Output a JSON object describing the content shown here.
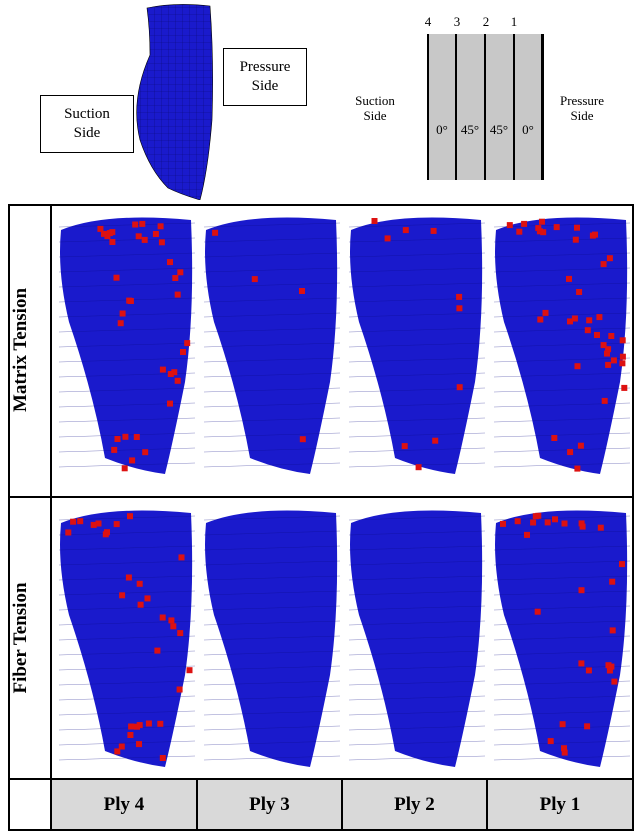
{
  "top_diagram": {
    "suction_label": "Suction\nSide",
    "pressure_label": "Pressure\nSide"
  },
  "layup": {
    "suction_label": "Suction\nSide",
    "pressure_label": "Pressure\nSide",
    "ply_numbers": [
      "4",
      "3",
      "2",
      "1"
    ],
    "angles": [
      "0°",
      "45°",
      "45°",
      "0°"
    ]
  },
  "rows": [
    {
      "title": "Matrix Tension"
    },
    {
      "title": "Fiber Tension"
    }
  ],
  "columns": [
    "Ply 4",
    "Ply 3",
    "Ply 2",
    "Ply 1"
  ],
  "colors": {
    "blade": "#1a1acc",
    "damage": "#dd1111",
    "header_bg": "#d9d9d9"
  }
}
